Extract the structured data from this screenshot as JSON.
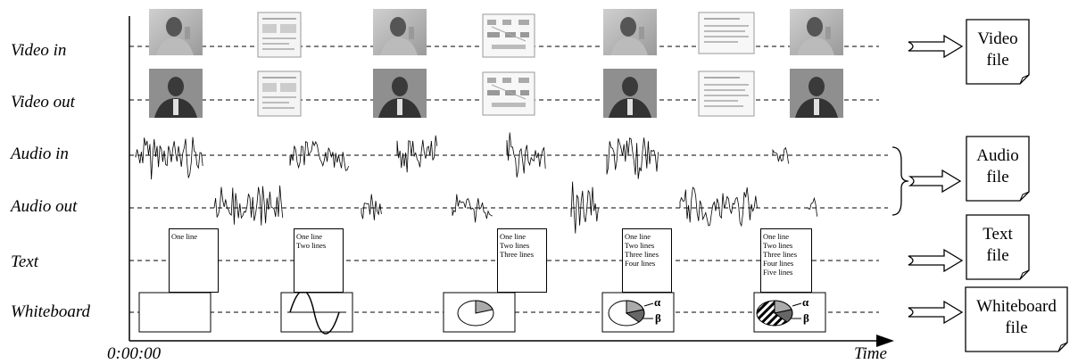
{
  "tracks": [
    {
      "label": "Video in"
    },
    {
      "label": "Video out"
    },
    {
      "label": "Audio in"
    },
    {
      "label": "Audio out"
    },
    {
      "label": "Text"
    },
    {
      "label": "Whiteboard"
    }
  ],
  "axis": {
    "start_label": "0:00:00",
    "end_label": "Time"
  },
  "text_boxes": [
    {
      "lines": [
        "One line"
      ]
    },
    {
      "lines": [
        "One line",
        "Two lines"
      ]
    },
    {
      "lines": [
        "One line",
        "Two lines",
        "Three lines"
      ]
    },
    {
      "lines": [
        "One line",
        "Two lines",
        "Three lines",
        "Four lines"
      ]
    },
    {
      "lines": [
        "One line",
        "Two lines",
        "Three lines",
        "Four lines",
        "Five lines"
      ]
    }
  ],
  "whiteboard": {
    "pie_labels": [
      "α",
      "β"
    ]
  },
  "files": [
    {
      "line1": "Video",
      "line2": "file"
    },
    {
      "line1": "Audio",
      "line2": "file"
    },
    {
      "line1": "Text",
      "line2": "file"
    },
    {
      "line1": "Whiteboard",
      "line2": "file"
    }
  ]
}
